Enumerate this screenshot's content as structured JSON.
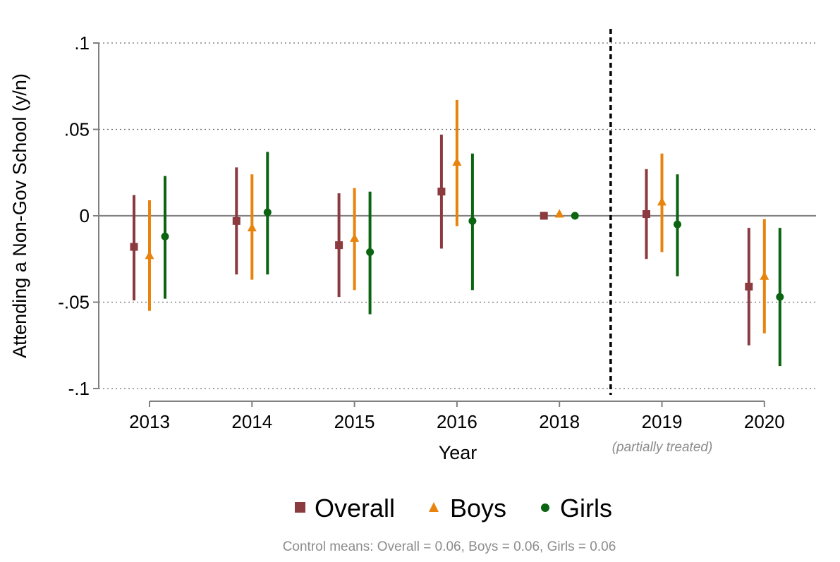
{
  "chart_data": {
    "type": "scatter",
    "subtype": "coefficient-plot-with-confidence-intervals",
    "title": "",
    "xlabel": "Year",
    "ylabel": "Attending a Non-Gov School (y/n)",
    "categories": [
      "2013",
      "2014",
      "2015",
      "2016",
      "2018",
      "2019",
      "2020"
    ],
    "ylim": [
      -0.1,
      0.1
    ],
    "yticks": [
      0.1,
      0.05,
      0,
      -0.05,
      -0.1
    ],
    "ytick_labels": [
      ".1",
      ".05",
      "0",
      "-.05",
      "-.1"
    ],
    "grid": "horizontal dotted at ±.05 and ±.1; solid zero line",
    "reference_line": {
      "after_category": "2018",
      "style": "dashed black vertical"
    },
    "category_annotation": {
      "category": "2019",
      "text": "(partially treated)"
    },
    "series": [
      {
        "name": "Overall",
        "color": "#8b3a3f",
        "marker": "square",
        "values": [
          -0.018,
          -0.003,
          -0.017,
          0.014,
          0.0,
          0.001,
          -0.041
        ],
        "ci_low": [
          -0.049,
          -0.034,
          -0.047,
          -0.019,
          0.0,
          -0.025,
          -0.075
        ],
        "ci_high": [
          0.012,
          0.028,
          0.013,
          0.047,
          0.0,
          0.027,
          -0.007
        ]
      },
      {
        "name": "Boys",
        "color": "#e8830d",
        "marker": "triangle",
        "values": [
          -0.023,
          -0.007,
          -0.013,
          0.031,
          0.001,
          0.008,
          -0.035
        ],
        "ci_low": [
          -0.055,
          -0.037,
          -0.043,
          -0.006,
          0.001,
          -0.021,
          -0.068
        ],
        "ci_high": [
          0.009,
          0.024,
          0.016,
          0.067,
          0.001,
          0.036,
          -0.002
        ]
      },
      {
        "name": "Girls",
        "color": "#0a6410",
        "marker": "circle",
        "values": [
          -0.012,
          0.002,
          -0.021,
          -0.003,
          0.0,
          -0.005,
          -0.047
        ],
        "ci_low": [
          -0.048,
          -0.034,
          -0.057,
          -0.043,
          0.0,
          -0.035,
          -0.087
        ],
        "ci_high": [
          0.023,
          0.037,
          0.014,
          0.036,
          0.0,
          0.024,
          -0.007
        ]
      }
    ],
    "legend": {
      "position": "bottom",
      "entries": [
        "Overall",
        "Boys",
        "Girls"
      ]
    },
    "note": "Control means: Overall = 0.06, Boys = 0.06, Girls = 0.06"
  }
}
